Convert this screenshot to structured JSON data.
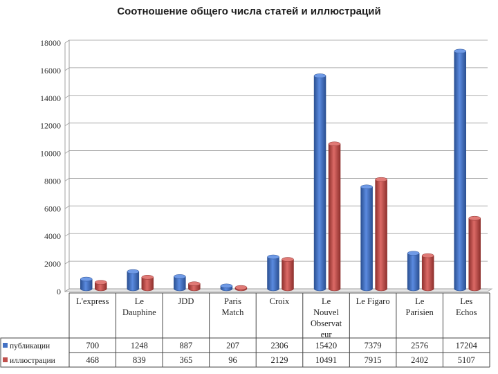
{
  "title": "Соотношение общего числа статей и иллюстраций",
  "chart_data": {
    "type": "bar",
    "title": "Соотношение общего числа статей и иллюстраций",
    "categories": [
      "L'express",
      "Le Dauphine",
      "JDD",
      "Paris Match",
      "Croix",
      "Le Nouvel Observateur",
      "Le Figaro",
      "Le Parisien",
      "Les Echos"
    ],
    "category_lines": [
      [
        "L'express"
      ],
      [
        "Le",
        "Dauphine"
      ],
      [
        "JDD"
      ],
      [
        "Paris",
        "Match"
      ],
      [
        "Croix"
      ],
      [
        "Le",
        "Nouvel",
        "Observat",
        "eur"
      ],
      [
        "Le Figaro"
      ],
      [
        "Le",
        "Parisien"
      ],
      [
        "Les",
        "Echos"
      ]
    ],
    "series": [
      {
        "name": "публикации",
        "color": "#4472c4",
        "values": [
          700,
          1248,
          887,
          207,
          2306,
          15420,
          7379,
          2576,
          17204
        ]
      },
      {
        "name": "иллюстрации",
        "color": "#c0504d",
        "values": [
          468,
          839,
          365,
          96,
          2129,
          10491,
          7915,
          2402,
          5107
        ]
      }
    ],
    "yticks": [
      0,
      2000,
      4000,
      6000,
      8000,
      10000,
      12000,
      14000,
      16000,
      18000
    ],
    "ylim": [
      0,
      18000
    ],
    "grid": true,
    "legend": "data-table"
  }
}
